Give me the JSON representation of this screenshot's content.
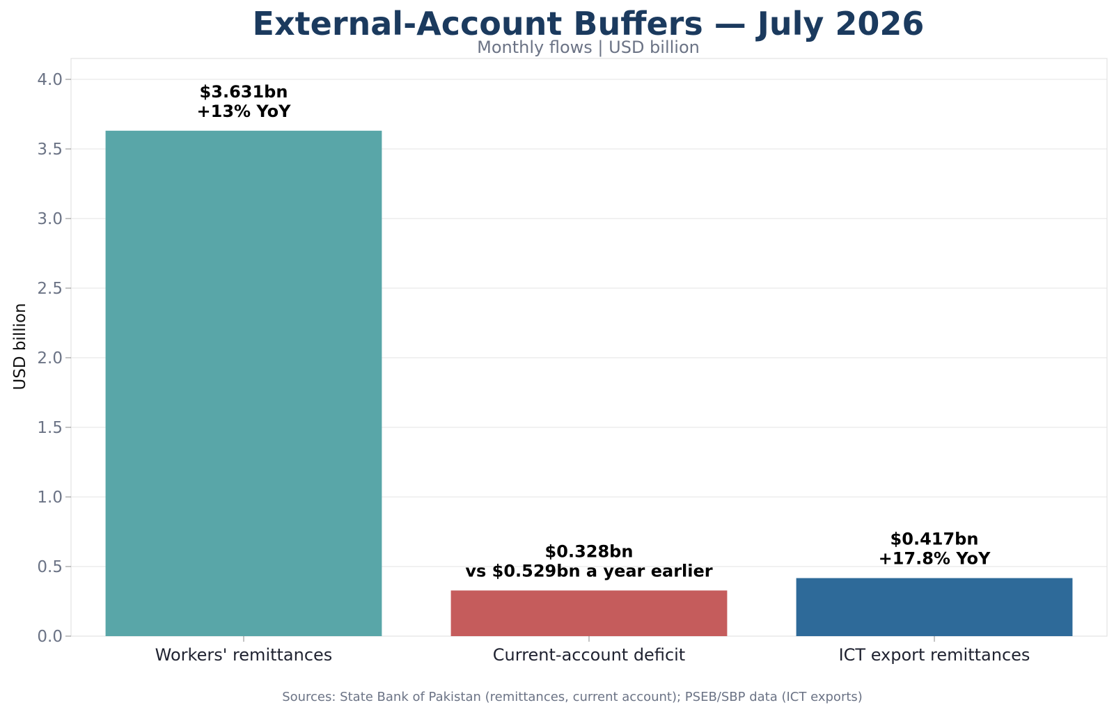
{
  "colors": {
    "title": "#1b3a5e",
    "subtitle": "#6b7385",
    "grid": "#e3e3e3",
    "frame": "#dddddd"
  },
  "chart_data": {
    "type": "bar",
    "title": "External-Account Buffers — July 2026",
    "subtitle": "Monthly flows | USD billion",
    "ylabel": "USD billion",
    "xlabel": "",
    "ylim": [
      0,
      4.15
    ],
    "yticks": [
      "0.0",
      "0.5",
      "1.0",
      "1.5",
      "2.0",
      "2.5",
      "3.0",
      "3.5",
      "4.0"
    ],
    "grid": true,
    "categories": [
      "Workers' remittances",
      "Current-account deficit",
      "ICT export remittances"
    ],
    "values": [
      3.631,
      0.328,
      0.417
    ],
    "bar_colors": [
      "#59a6a8",
      "#c55c5c",
      "#2e6a99"
    ],
    "data_labels": [
      [
        "$3.631bn",
        "+13% YoY"
      ],
      [
        "$0.328bn",
        "vs $0.529bn a year earlier"
      ],
      [
        "$0.417bn",
        "+17.8% YoY"
      ]
    ],
    "source": "Sources: State Bank of Pakistan (remittances, current account); PSEB/SBP data (ICT exports)"
  }
}
